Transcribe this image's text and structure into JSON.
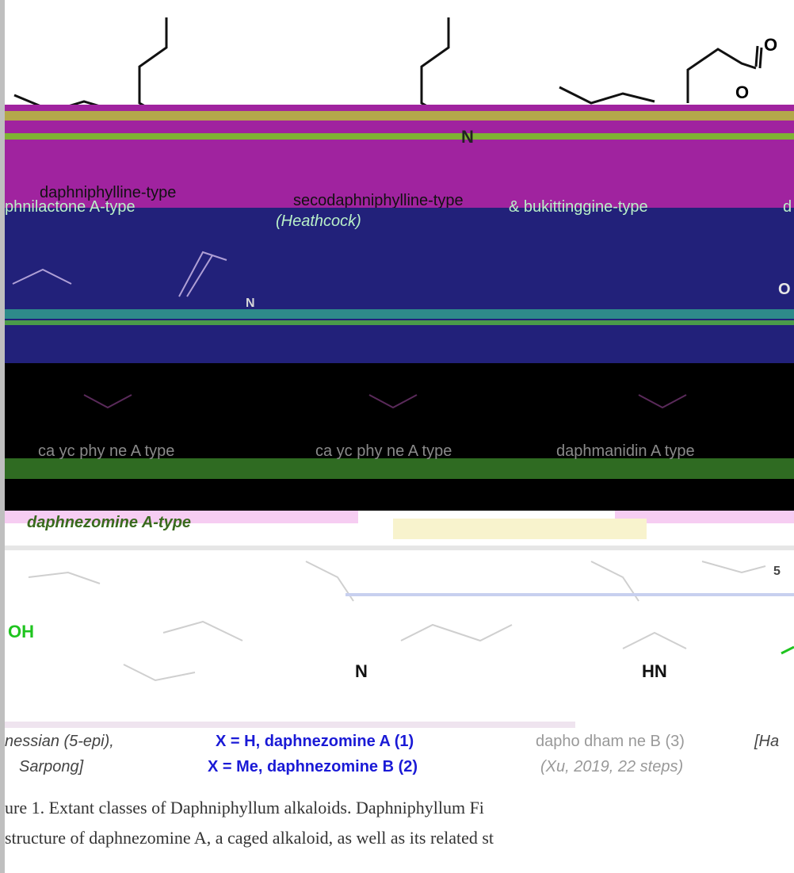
{
  "colors": {
    "magenta": "#a0239f",
    "navy": "#22217a",
    "green_band": "#2f6b22",
    "blue": "#1a1ad6",
    "green": "#1fc41f",
    "gray": "#8a8a8a",
    "pink": "#f6cdf2",
    "cream": "#f8f3cd"
  },
  "row1": {
    "label_daphniphylline": "daphniphylline-type",
    "label_secodaphniphylline": "secodaphniphylline-type",
    "label_heathcock": "(Heathcock)",
    "label_daphnilactone_a": "phnilactone A-type",
    "label_bukittinggine": "& bukittinggine-type",
    "label_d": "d",
    "atom_o1": "O",
    "atom_o2": "O",
    "atom_n": "N"
  },
  "row2": {
    "atom_o": "O",
    "atom_n": "N"
  },
  "row3": {
    "label_calyciphylline_a1": "ca yc phy ne A type",
    "label_calyciphylline_a2": "ca yc phy ne A type",
    "label_daphmanidin": "daphmanidin A type"
  },
  "row4": {
    "label_daphnezomine": "daphnezomine A-type"
  },
  "bottom": {
    "atom_oh": "OH",
    "atom_n": "N",
    "atom_hn": "HN",
    "atom_5": "5",
    "label_hanessian": "nessian (5-epi),",
    "label_sarpong": "Sarpong]",
    "label_daph_a": "X = H, daphnezomine A (1)",
    "label_daph_b": "X = Me, daphnezomine B (2)",
    "label_daphnilongeranin": "dapho dham ne B (3)",
    "label_xu": "(Xu, 2019, 22 steps)",
    "label_ha": "[Ha"
  },
  "caption": {
    "line1": "ure 1. Extant classes of Daphniphyllum alkaloids. Daphniphyllum Fi",
    "line2": "structure of daphnezomine A, a caged alkaloid, as well as its related st"
  }
}
